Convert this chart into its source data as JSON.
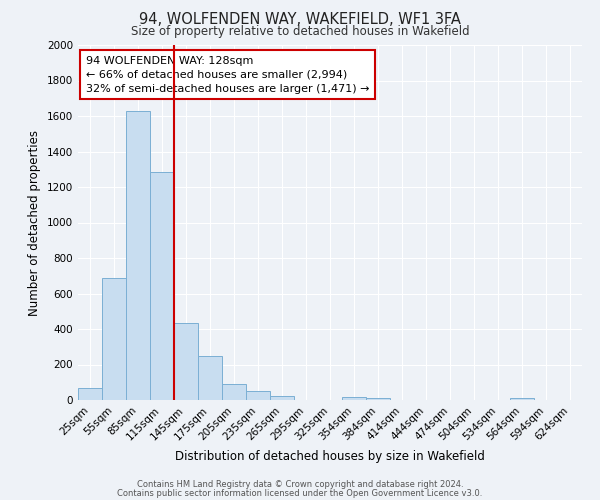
{
  "title": "94, WOLFENDEN WAY, WAKEFIELD, WF1 3FA",
  "subtitle": "Size of property relative to detached houses in Wakefield",
  "xlabel": "Distribution of detached houses by size in Wakefield",
  "ylabel": "Number of detached properties",
  "bar_color": "#c8ddf0",
  "bar_edge_color": "#7bafd4",
  "background_color": "#eef2f7",
  "grid_color": "#ffffff",
  "annotation_box_color": "#ffffff",
  "annotation_box_edge": "#cc0000",
  "red_line_color": "#cc0000",
  "categories": [
    "25sqm",
    "55sqm",
    "85sqm",
    "115sqm",
    "145sqm",
    "175sqm",
    "205sqm",
    "235sqm",
    "265sqm",
    "295sqm",
    "325sqm",
    "354sqm",
    "384sqm",
    "414sqm",
    "444sqm",
    "474sqm",
    "504sqm",
    "534sqm",
    "564sqm",
    "594sqm",
    "624sqm"
  ],
  "values": [
    65,
    690,
    1630,
    1285,
    435,
    250,
    90,
    50,
    25,
    0,
    0,
    15,
    10,
    0,
    0,
    0,
    0,
    0,
    12,
    0,
    0
  ],
  "ylim": [
    0,
    2000
  ],
  "yticks": [
    0,
    200,
    400,
    600,
    800,
    1000,
    1200,
    1400,
    1600,
    1800,
    2000
  ],
  "red_line_x": 3.5,
  "annotation_title": "94 WOLFENDEN WAY: 128sqm",
  "annotation_line1": "← 66% of detached houses are smaller (2,994)",
  "annotation_line2": "32% of semi-detached houses are larger (1,471) →",
  "footer_line1": "Contains HM Land Registry data © Crown copyright and database right 2024.",
  "footer_line2": "Contains public sector information licensed under the Open Government Licence v3.0."
}
